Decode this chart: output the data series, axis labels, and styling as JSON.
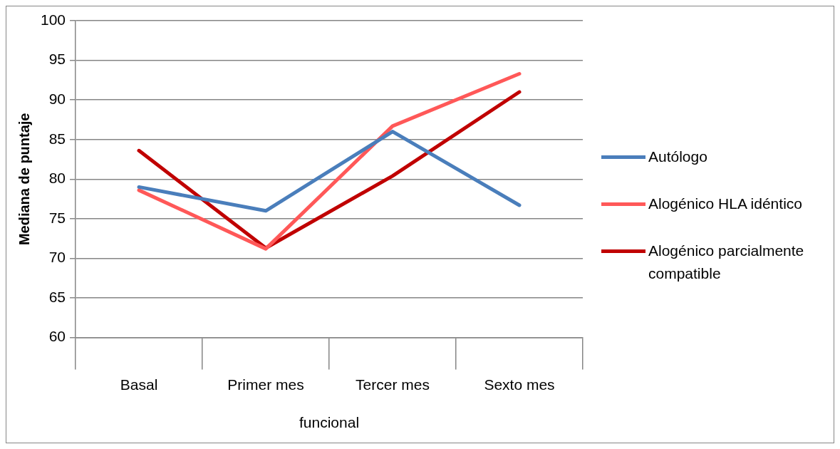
{
  "chart_data": {
    "type": "line",
    "ylabel": "Mediana de puntaje",
    "xlabel": "funcional",
    "categories": [
      "Basal",
      "Primer mes",
      "Tercer mes",
      "Sexto mes"
    ],
    "series": [
      {
        "name": "Autólogo",
        "color": "#4a7ebb",
        "values": [
          79,
          76,
          86,
          76.7
        ]
      },
      {
        "name": "Alogénico HLA idéntico",
        "color": "#ff5858",
        "values": [
          78.6,
          71.2,
          86.7,
          93.3
        ]
      },
      {
        "name": "Alogénico parcialmente compatible",
        "color": "#c00000",
        "values": [
          83.6,
          71.3,
          80.4,
          91
        ]
      }
    ],
    "ylim": [
      60,
      100
    ],
    "yticks": [
      60,
      65,
      70,
      75,
      80,
      85,
      90,
      95,
      100
    ],
    "grid": "y",
    "legend": "right",
    "marker": "none",
    "line_style": "solid"
  }
}
